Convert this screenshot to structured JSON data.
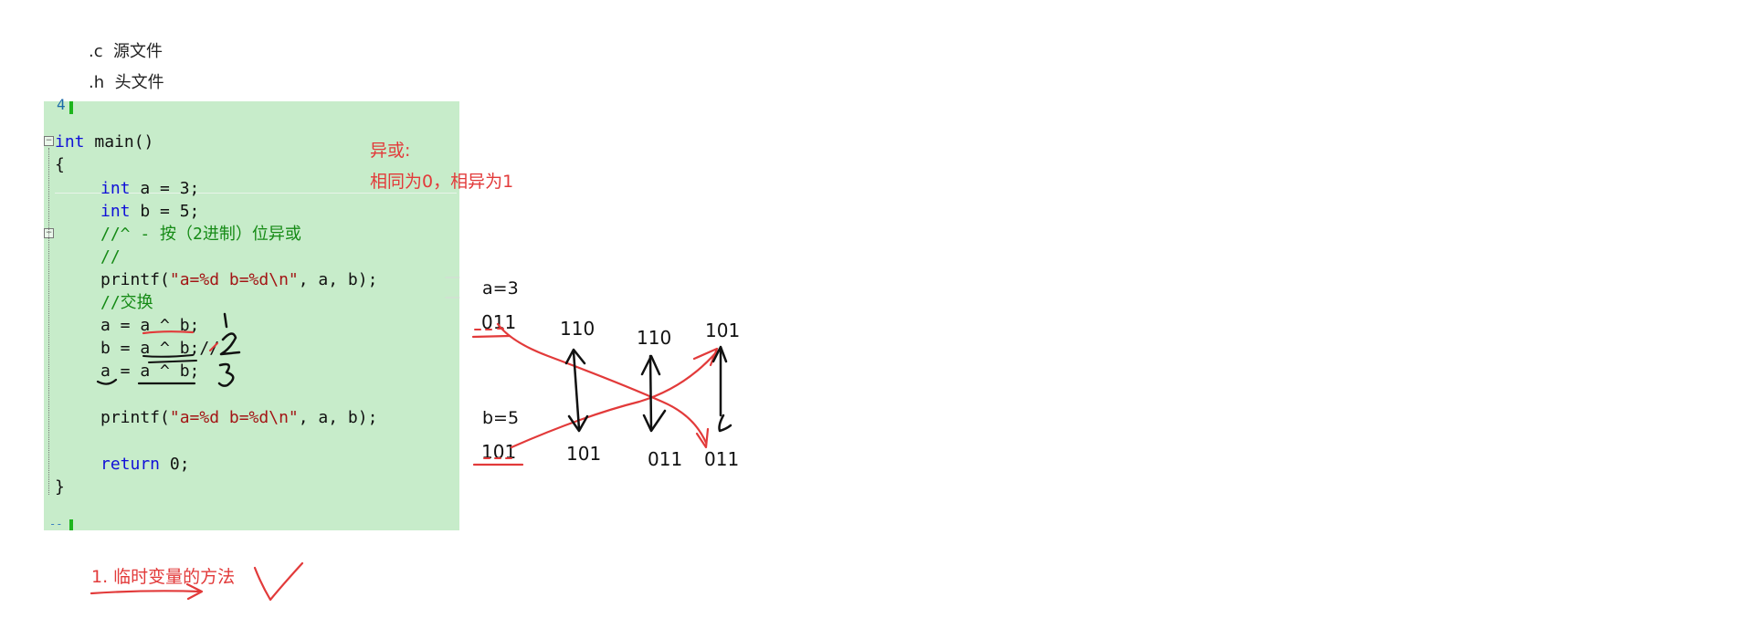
{
  "notes": {
    "c_ext": ".c  源文件",
    "h_ext": ".h  头文件"
  },
  "code": {
    "line_number_top": "4",
    "line_main": "int main()",
    "line_main_kw": "int",
    "line_main_rest": " main()",
    "open_brace": "{",
    "decl_a_kw": "int",
    "decl_a_rest": " a = 3;",
    "decl_b_kw": "int",
    "decl_b_rest": " b = 5;",
    "comment_xor": "//^ - 按（2进制）位异或",
    "comment_empty": "//",
    "printf1_fn": "printf(",
    "printf1_str": "\"a=%d b=%d\\n\"",
    "printf1_rest": ", a, b);",
    "comment_swap": "//交换",
    "swap1": "a = a ^ b;",
    "swap2": "b = a ^ b;//",
    "swap3": "a = a ^ b;",
    "printf2_fn": "printf(",
    "printf2_str": "\"a=%d b=%d\\n\"",
    "printf2_rest": ", a, b);",
    "return_kw": "return",
    "return_rest": " 0;",
    "close_brace": "}"
  },
  "annotation": {
    "xor_title": "异或:",
    "xor_rule": "相同为0，相异为1",
    "method_one": "1. 临时变量的方法"
  },
  "diagram": {
    "a_label": "a=3",
    "a_bits": "011",
    "b_label": "b=5",
    "b_bits": "101",
    "step1_top": "110",
    "step1_bottom": "101",
    "step2_top": "110",
    "step2_bottom": "011",
    "step3_top": "101",
    "step3_bottom": "011"
  },
  "colors": {
    "panel_bg": "#c7ecca",
    "keyword": "#1010d8",
    "string": "#a31515",
    "comment": "#158a15",
    "annotation_red": "#e23a3a"
  }
}
